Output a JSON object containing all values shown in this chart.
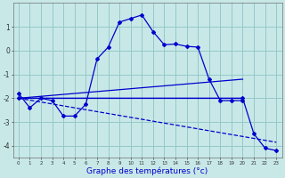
{
  "xlabel": "Graphe des températures (°c)",
  "bg_color": "#c8e8e8",
  "grid_color": "#96c8c8",
  "line_color": "#0000cc",
  "line1_x": [
    0,
    1,
    2,
    3,
    4,
    5,
    6,
    7,
    8,
    9,
    10,
    11,
    12,
    13,
    14,
    15,
    16,
    17,
    18,
    19,
    20
  ],
  "line1_y": [
    -1.8,
    -2.4,
    -2.0,
    -2.1,
    -2.75,
    -2.75,
    -2.25,
    -0.35,
    0.15,
    1.2,
    1.35,
    1.5,
    0.8,
    0.25,
    0.28,
    0.18,
    0.15,
    -1.2,
    -2.1,
    -2.1,
    -2.1
  ],
  "line2_x": [
    0,
    20
  ],
  "line2_y": [
    -2.0,
    -2.0
  ],
  "line3_x": [
    0,
    20,
    21,
    22,
    23
  ],
  "line3_y": [
    -2.0,
    -2.0,
    -3.5,
    -4.1,
    -4.2
  ],
  "line4_x": [
    0,
    20
  ],
  "line4_y": [
    -2.0,
    -1.2
  ],
  "line5_x": [
    0,
    23
  ],
  "line5_y": [
    -2.0,
    -3.85
  ],
  "ylim": [
    -4.5,
    2.0
  ],
  "xlim": [
    -0.5,
    23.5
  ],
  "yticks": [
    -4,
    -3,
    -2,
    -1,
    0,
    1
  ],
  "xticks": [
    0,
    1,
    2,
    3,
    4,
    5,
    6,
    7,
    8,
    9,
    10,
    11,
    12,
    13,
    14,
    15,
    16,
    17,
    18,
    19,
    20,
    21,
    22,
    23
  ]
}
